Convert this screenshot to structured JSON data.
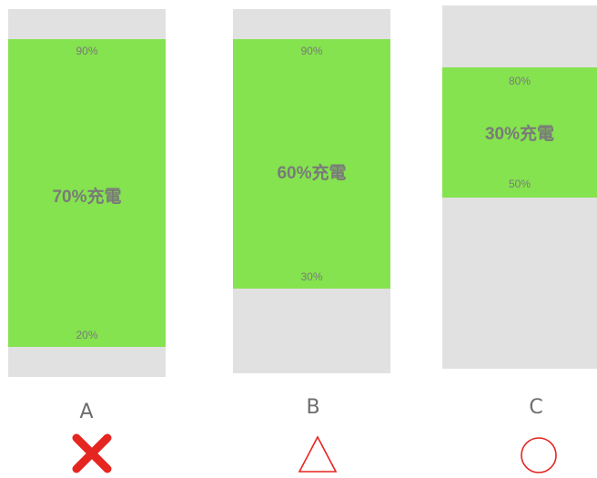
{
  "options": [
    {
      "letter": "A",
      "upper_label": "90%",
      "lower_label": "20%",
      "charge_label": "70%充電",
      "upper_percent": 90,
      "lower_percent": 20,
      "verdict": "cross-icon",
      "verdict_color": "#e52520"
    },
    {
      "letter": "B",
      "upper_label": "90%",
      "lower_label": "30%",
      "charge_label": "60%充電",
      "upper_percent": 90,
      "lower_percent": 30,
      "verdict": "triangle-icon",
      "verdict_color": "#e52520"
    },
    {
      "letter": "C",
      "upper_label": "80%",
      "lower_label": "50%",
      "charge_label": "30%充電",
      "upper_percent": 80,
      "lower_percent": 50,
      "verdict": "circle-icon",
      "verdict_color": "#e52520"
    }
  ],
  "colors": {
    "panel": "#e1e1e1",
    "charge_band": "#84e34e",
    "label_text": "#7a7a7a"
  }
}
